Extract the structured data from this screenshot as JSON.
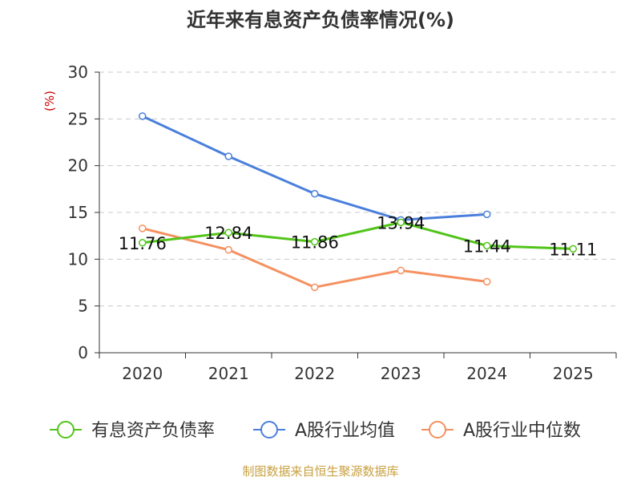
{
  "chart_data": {
    "type": "line",
    "title": "近年来有息资产负债率情况(%)",
    "ylabel": "(%)",
    "xlabel": "",
    "categories": [
      "2020",
      "2021",
      "2022",
      "2023",
      "2024",
      "2025"
    ],
    "ylim": [
      0,
      30
    ],
    "yticks": [
      0,
      5,
      10,
      15,
      20,
      25,
      30
    ],
    "grid": true,
    "legend_position": "bottom",
    "series": [
      {
        "name": "有息资产负债率",
        "color": "#52c41a",
        "values": [
          11.76,
          12.84,
          11.86,
          13.94,
          11.44,
          11.11
        ],
        "labels": [
          "11.76",
          "12.84",
          "11.86",
          "13.94",
          "11.44",
          "11.11"
        ]
      },
      {
        "name": "A股行业均值",
        "color": "#4a7fdc",
        "values": [
          25.3,
          21.0,
          17.0,
          14.2,
          14.8,
          null
        ]
      },
      {
        "name": "A股行业中位数",
        "color": "#f59060",
        "values": [
          13.3,
          11.0,
          7.0,
          8.8,
          7.6,
          null
        ]
      }
    ]
  },
  "source": "制图数据来自恒生聚源数据库"
}
